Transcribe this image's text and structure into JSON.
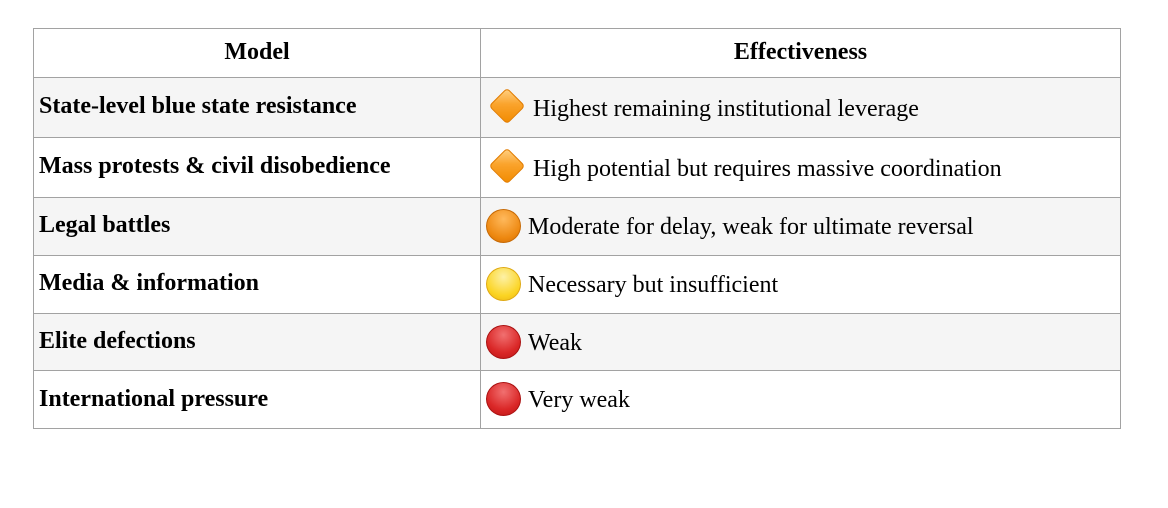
{
  "table": {
    "columns": [
      {
        "label": "Model"
      },
      {
        "label": "Effectiveness"
      }
    ],
    "rows": [
      {
        "model": "State-level blue state resistance",
        "icon": "orange-diamond",
        "effectiveness": "Highest remaining institutional leverage"
      },
      {
        "model": "Mass protests & civil disobedience",
        "icon": "orange-diamond",
        "effectiveness": "High potential but requires massive coordination"
      },
      {
        "model": "Legal battles",
        "icon": "orange-circle",
        "effectiveness": "Moderate for delay, weak for ultimate reversal"
      },
      {
        "model": "Media & information",
        "icon": "yellow-circle",
        "effectiveness": "Necessary but insufficient"
      },
      {
        "model": "Elite defections",
        "icon": "red-circle",
        "effectiveness": "Weak"
      },
      {
        "model": "International pressure",
        "icon": "red-circle",
        "effectiveness": "Very weak"
      }
    ],
    "colors": {
      "row_alt_bg": "#f5f5f5",
      "row_bg": "#ffffff",
      "border": "#a2a2a2",
      "text": "#000000",
      "icon_orange_diamond": "#faa32c",
      "icon_orange_circle": "#ed870f",
      "icon_yellow_circle": "#fbd423",
      "icon_red_circle": "#da2727"
    }
  },
  "chart_data": {
    "type": "table",
    "title": "",
    "columns": [
      "Model",
      "Effectiveness"
    ],
    "rows": [
      [
        "State-level blue state resistance",
        "Highest remaining institutional leverage"
      ],
      [
        "Mass protests & civil disobedience",
        "High potential but requires massive coordination"
      ],
      [
        "Legal battles",
        "Moderate for delay, weak for ultimate reversal"
      ],
      [
        "Media & information",
        "Necessary but insufficient"
      ],
      [
        "Elite defections",
        "Weak"
      ],
      [
        "International pressure",
        "Very weak"
      ]
    ],
    "row_icons": [
      "orange-diamond",
      "orange-diamond",
      "orange-circle",
      "yellow-circle",
      "red-circle",
      "red-circle"
    ]
  }
}
